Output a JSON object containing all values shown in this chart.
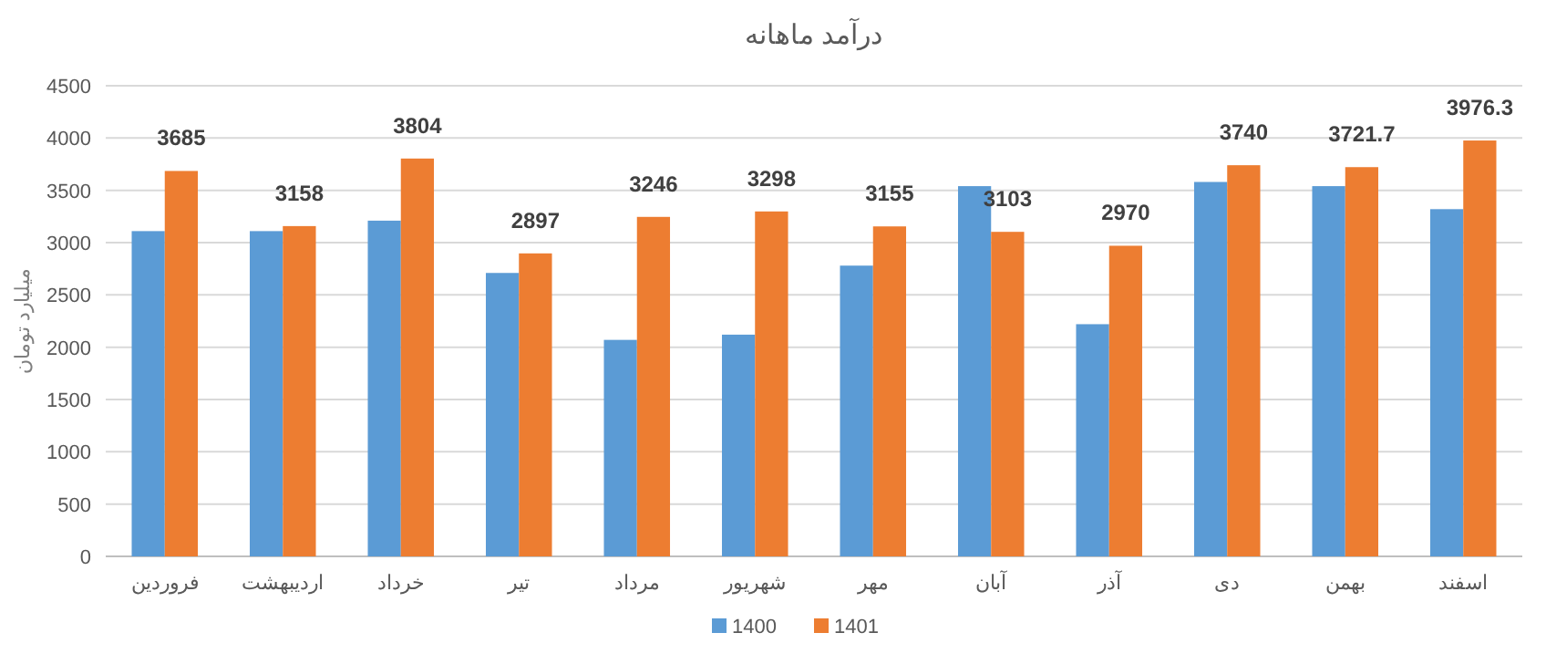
{
  "chart_data": {
    "type": "bar",
    "title": "درآمد ماهانه",
    "ylabel": "میلیارد تومان",
    "categories": [
      "فروردین",
      "اردیبهشت",
      "خرداد",
      "تیر",
      "مرداد",
      "شهریور",
      "مهر",
      "آبان",
      "آذر",
      "دی",
      "بهمن",
      "اسفند"
    ],
    "series": [
      {
        "name": "1400",
        "color": "#5b9bd5",
        "values": [
          3110,
          3110,
          3210,
          2710,
          2070,
          2120,
          2780,
          3540,
          2220,
          3580,
          3540,
          3320
        ]
      },
      {
        "name": "1401",
        "color": "#ed7d31",
        "values": [
          3685,
          3158,
          3804,
          2897,
          3246,
          3298,
          3155,
          3103,
          2970,
          3740,
          3721.7,
          3976.3
        ],
        "value_labels": [
          "3685",
          "3158",
          "3804",
          "2897",
          "3246",
          "3298",
          "3155",
          "3103",
          "2970",
          "3740",
          "3721.7",
          "3976.3"
        ]
      }
    ],
    "ylim": [
      0,
      4500
    ],
    "yticks": [
      0,
      500,
      1000,
      1500,
      2000,
      2500,
      3000,
      3500,
      4000,
      4500
    ],
    "grid": "y",
    "legend": "bottom"
  }
}
